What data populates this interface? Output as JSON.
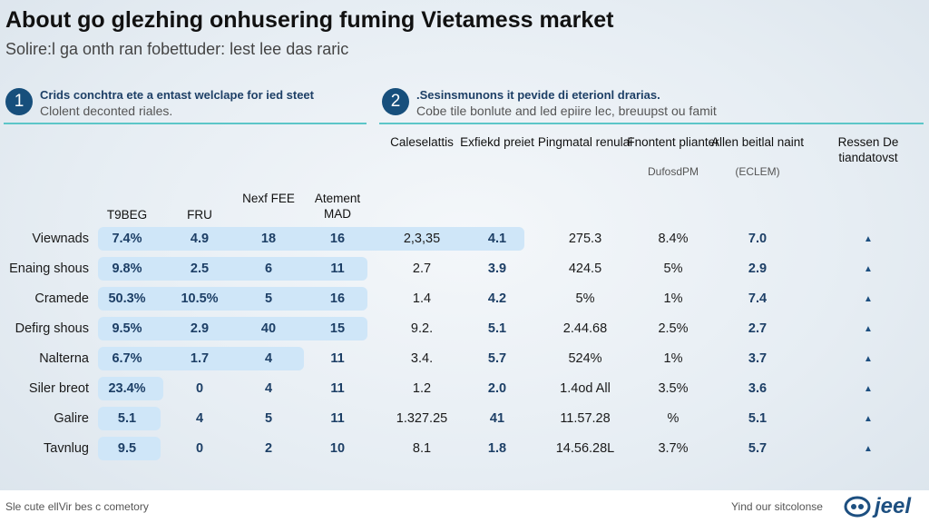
{
  "title": "About go glezhing onhusering fuming Vietamess market",
  "subtitle": "Solire:l ga onth ran fobettuder: lest lee das raric",
  "sections": [
    {
      "number": "1",
      "heading": "Crids conchtra ete a entast welclape for ied steet",
      "subheading": "Clolent deconted riales."
    },
    {
      "number": "2",
      "heading": ".Sesinsmunons it pevide di eterionl drarias.",
      "subheading": "Cobe tile bonlute and led epiire lec, breuupst ou famit"
    }
  ],
  "columns": [
    {
      "label": "T9BEG"
    },
    {
      "label": "FRU"
    },
    {
      "label": "Nexf FEE"
    },
    {
      "label": "Atement MAD"
    },
    {
      "label": "Caleselattis"
    },
    {
      "label": "Exfiekd preiet"
    },
    {
      "label": "Pingmatal renulai"
    },
    {
      "label": "Fnontent plianter",
      "sub": "DufosdPM"
    },
    {
      "label": "Allen beitlal naint",
      "sub": "(ECLEM)"
    },
    {
      "label": "Ressen De tiandatovst"
    }
  ],
  "rows": [
    {
      "label": "Viewnads",
      "values": [
        "7.4%",
        "4.9",
        "18",
        "16",
        "2,3,35",
        "4.1",
        "275.3",
        "8.4%",
        "7.0",
        "▲"
      ]
    },
    {
      "label": "Enaing shous",
      "values": [
        "9.8%",
        "2.5",
        "6",
        "11",
        "2.7",
        "3.9",
        "424.5",
        "5%",
        "2.9",
        "▲"
      ]
    },
    {
      "label": "Cramede",
      "values": [
        "50.3%",
        "10.5%",
        "5",
        "16",
        "1.4",
        "4.2",
        "5%",
        "1%",
        "7.4",
        "▲"
      ]
    },
    {
      "label": "Defirg shous",
      "values": [
        "9.5%",
        "2.9",
        "40",
        "15",
        "9.2.",
        "5.1",
        "2.44.68",
        "2.5%",
        "2.7",
        "▲"
      ]
    },
    {
      "label": "Nalterna",
      "values": [
        "6.7%",
        "1.7",
        "4",
        "11",
        "3.4.",
        "5.7",
        "524%",
        "1%",
        "3.7",
        "▲"
      ]
    },
    {
      "label": "Siler breot",
      "values": [
        "23.4%",
        "0",
        "4",
        "11",
        "1.2",
        "2.0",
        "1.4od All",
        "3.5%",
        "3.6",
        "▲"
      ]
    },
    {
      "label": "Galire",
      "values": [
        "5.1",
        "4",
        "5",
        "11",
        "1.327.25",
        "41",
        "11.57.28",
        "%",
        "5.1",
        "▲"
      ]
    },
    {
      "label": "Tavnlug",
      "values": [
        "9.5",
        "0",
        "2",
        "10",
        "8.1",
        "1.8",
        "14.56.28L",
        "3.7%",
        "5.7",
        "▲"
      ]
    }
  ],
  "footer": {
    "left": "Sle cute ellVir bes c cometory",
    "right": "Yind our sitcolonse",
    "logo": "jeel"
  },
  "colors": {
    "accent": "#174f7c",
    "rule": "#5cc6c8",
    "highlight": "#cfe6f8"
  }
}
